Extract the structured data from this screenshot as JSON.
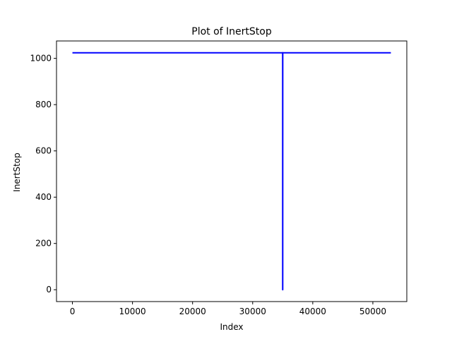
{
  "chart_data": {
    "type": "line",
    "title": "Plot of InertStop",
    "xlabel": "Index",
    "ylabel": "InertStop",
    "xlim": [
      -2650,
      55650
    ],
    "ylim": [
      -51.2,
      1075.2
    ],
    "xticks": [
      0,
      10000,
      20000,
      30000,
      40000,
      50000
    ],
    "yticks": [
      0,
      200,
      400,
      600,
      800,
      1000
    ],
    "grid": false,
    "series": [
      {
        "name": "",
        "color": "#0000ff",
        "x": [
          0,
          34990,
          34995,
          35000,
          35005,
          53000
        ],
        "y": [
          1024,
          1024,
          0,
          0,
          1024,
          1024
        ]
      }
    ]
  }
}
